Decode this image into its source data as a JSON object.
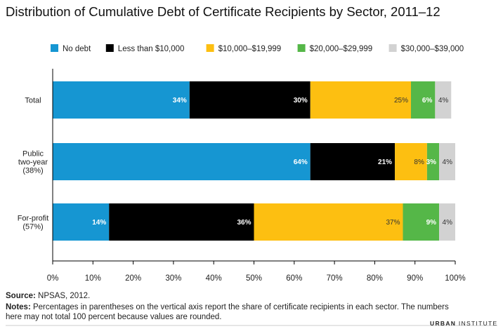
{
  "title": "Distribution of Cumulative Debt of Certificate Recipients by Sector, 2011–12",
  "source": {
    "label": "Source:",
    "text": " NPSAS, 2012."
  },
  "notes": {
    "label": "Notes:",
    "text": " Percentages in parentheses on the vertical axis report the share of certificate recipients in each sector. The numbers here may not total 100 percent because values are rounded."
  },
  "brand": {
    "part1": "URBAN",
    "part2": " INSTITUTE"
  },
  "chart_data": {
    "type": "bar",
    "orientation": "horizontal",
    "stacked": true,
    "title": "Distribution of Cumulative Debt of Certificate Recipients by Sector, 2011–12",
    "xlabel": "",
    "ylabel": "",
    "xlim": [
      0,
      100
    ],
    "x_ticks": [
      "0%",
      "10%",
      "20%",
      "30%",
      "40%",
      "50%",
      "60%",
      "70%",
      "80%",
      "90%",
      "100%"
    ],
    "grid": false,
    "legend_position": "top",
    "categories": [
      [
        "Total"
      ],
      [
        "Public",
        "two-year",
        "(38%)"
      ],
      [
        "For-profit",
        "(57%)"
      ]
    ],
    "series": [
      {
        "name": "No debt",
        "color": "#1696d2",
        "values": [
          34,
          64,
          14
        ],
        "labels": [
          "34%",
          "64%",
          "14%"
        ],
        "label_color": "#ffffff",
        "label_bold": true
      },
      {
        "name": "Less than $10,000",
        "color": "#000000",
        "values": [
          30,
          21,
          36
        ],
        "labels": [
          "30%",
          "21%",
          "36%"
        ],
        "label_color": "#ffffff",
        "label_bold": true
      },
      {
        "name": "$10,000–$19,999",
        "color": "#fdbf11",
        "values": [
          25,
          8,
          37
        ],
        "labels": [
          "25%",
          "8%",
          "37%"
        ],
        "label_color": "#333333",
        "label_bold": false
      },
      {
        "name": "$20,000–$29,999",
        "color": "#55b748",
        "values": [
          6,
          3,
          9
        ],
        "labels": [
          "6%",
          "3%",
          "9%"
        ],
        "label_color": "#ffffff",
        "label_bold": true
      },
      {
        "name": "$30,000–$39,000",
        "color": "#d2d2d2",
        "values": [
          4,
          4,
          4
        ],
        "labels": [
          "4%",
          "4%",
          "4%"
        ],
        "label_color": "#333333",
        "label_bold": false
      }
    ]
  }
}
